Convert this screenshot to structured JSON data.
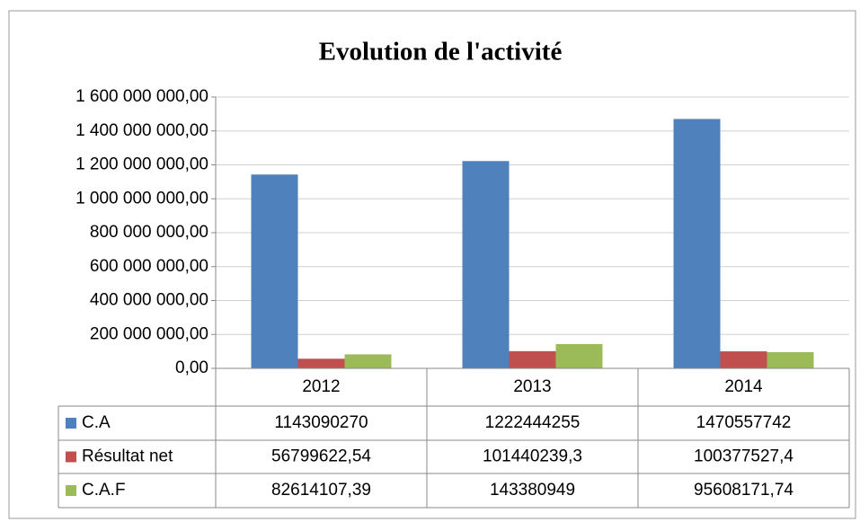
{
  "chart_data": {
    "type": "bar",
    "title": "Evolution de l'activité",
    "categories": [
      "2012",
      "2013",
      "2014"
    ],
    "series": [
      {
        "name": "C.A",
        "color": "#4f81bd",
        "values": [
          1143090270,
          1222444255,
          1470557742
        ]
      },
      {
        "name": "Résultat net",
        "color": "#c0504d",
        "values": [
          56799622.54,
          101440239.3,
          100377527.4
        ],
        "value_labels": [
          "56799622,54",
          "101440239,3",
          "100377527,4"
        ]
      },
      {
        "name": "C.A.F",
        "color": "#9bbb59",
        "values": [
          82614107.39,
          143380949,
          95608171.74
        ],
        "value_labels": [
          "82614107,39",
          "143380949",
          "95608171,74"
        ]
      }
    ],
    "ylim": [
      0,
      1600000000
    ],
    "yticks": [
      {
        "value": 0,
        "label": "0,00"
      },
      {
        "value": 200000000,
        "label": "200 000 000,00"
      },
      {
        "value": 400000000,
        "label": "400 000 000,00"
      },
      {
        "value": 600000000,
        "label": "600 000 000,00"
      },
      {
        "value": 800000000,
        "label": "800 000 000,00"
      },
      {
        "value": 1000000000,
        "label": "1 000 000 000,00"
      },
      {
        "value": 1200000000,
        "label": "1 200 000 000,00"
      },
      {
        "value": 1400000000,
        "label": "1 400 000 000,00"
      },
      {
        "value": 1600000000,
        "label": "1 600 000 000,00"
      }
    ],
    "grid": true,
    "legend": "data-table"
  }
}
